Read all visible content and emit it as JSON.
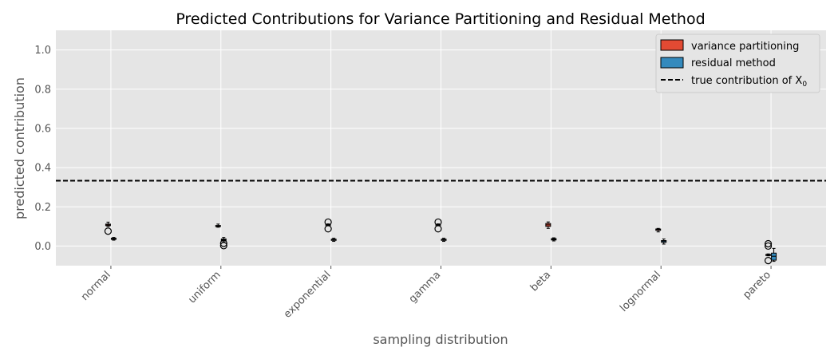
{
  "chart_data": {
    "type": "box",
    "title": "Predicted Contributions for Variance Partitioning and Residual Method",
    "xlabel": "sampling distribution",
    "ylabel": "predicted contribution",
    "ylim": [
      -0.1,
      1.1
    ],
    "yticks": [
      0.0,
      0.2,
      0.4,
      0.6,
      0.8,
      1.0
    ],
    "ytick_labels": [
      "0.0",
      "0.2",
      "0.4",
      "0.6",
      "0.8",
      "1.0"
    ],
    "grid": true,
    "legend_position": "top-right",
    "categories": [
      "normal",
      "uniform",
      "exponential",
      "gamma",
      "beta",
      "lognormal",
      "pareto"
    ],
    "reference_line": {
      "label": "true contribution of X",
      "label_subscript": "0",
      "value": 0.333,
      "color": "#000000",
      "style": "dashed"
    },
    "series": [
      {
        "name": "variance partitioning",
        "color": "#E24A33",
        "boxes": [
          {
            "whislo": 0.1,
            "q1": 0.104,
            "med": 0.108,
            "q3": 0.112,
            "whishi": 0.122,
            "fliers": [
              0.076
            ]
          },
          {
            "whislo": 0.096,
            "q1": 0.099,
            "med": 0.102,
            "q3": 0.105,
            "whishi": 0.112,
            "fliers": []
          },
          {
            "whislo": 0.103,
            "q1": 0.106,
            "med": 0.108,
            "q3": 0.11,
            "whishi": 0.113,
            "fliers": [
              0.122,
              0.088
            ]
          },
          {
            "whislo": 0.103,
            "q1": 0.106,
            "med": 0.108,
            "q3": 0.11,
            "whishi": 0.113,
            "fliers": [
              0.122,
              0.088
            ]
          },
          {
            "whislo": 0.09,
            "q1": 0.1,
            "med": 0.108,
            "q3": 0.115,
            "whishi": 0.123,
            "fliers": []
          },
          {
            "whislo": 0.072,
            "q1": 0.08,
            "med": 0.084,
            "q3": 0.087,
            "whishi": 0.09,
            "fliers": []
          },
          {
            "whislo": -0.05,
            "q1": -0.048,
            "med": -0.046,
            "q3": -0.043,
            "whishi": -0.04,
            "fliers": [
              0.012,
              0.0,
              -0.074
            ]
          }
        ]
      },
      {
        "name": "residual method",
        "color": "#348ABD",
        "boxes": [
          {
            "whislo": 0.03,
            "q1": 0.034,
            "med": 0.037,
            "q3": 0.04,
            "whishi": 0.044,
            "fliers": []
          },
          {
            "whislo": 0.022,
            "q1": 0.028,
            "med": 0.032,
            "q3": 0.036,
            "whishi": 0.044,
            "fliers": [
              0.014,
              0.002
            ]
          },
          {
            "whislo": 0.024,
            "q1": 0.029,
            "med": 0.032,
            "q3": 0.035,
            "whishi": 0.04,
            "fliers": []
          },
          {
            "whislo": 0.024,
            "q1": 0.029,
            "med": 0.032,
            "q3": 0.035,
            "whishi": 0.04,
            "fliers": []
          },
          {
            "whislo": 0.026,
            "q1": 0.031,
            "med": 0.034,
            "q3": 0.038,
            "whishi": 0.042,
            "fliers": []
          },
          {
            "whislo": 0.01,
            "q1": 0.019,
            "med": 0.023,
            "q3": 0.028,
            "whishi": 0.036,
            "fliers": []
          },
          {
            "whislo": -0.078,
            "q1": -0.072,
            "med": -0.052,
            "q3": -0.036,
            "whishi": -0.012,
            "fliers": []
          }
        ]
      }
    ]
  }
}
